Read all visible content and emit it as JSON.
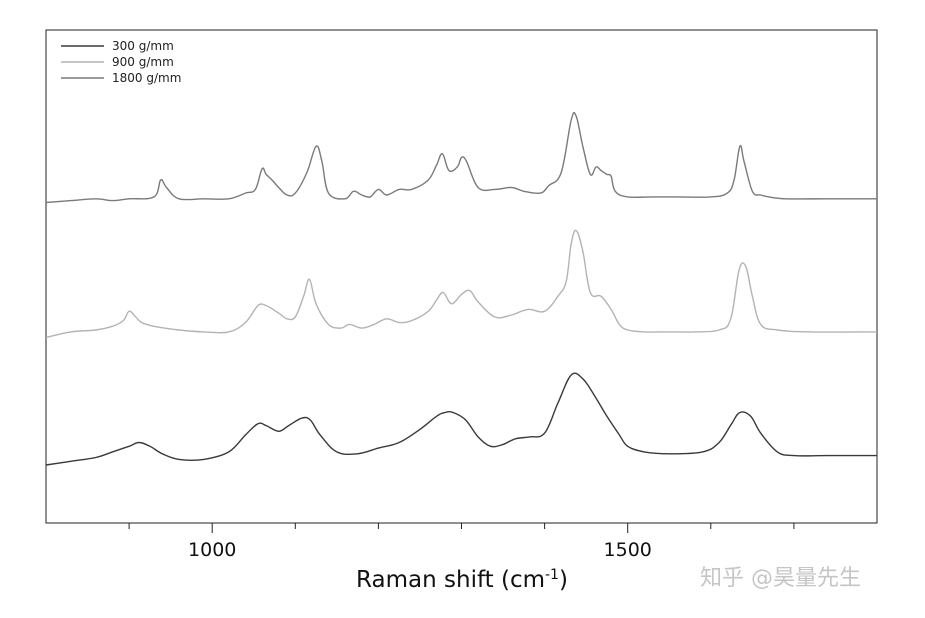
{
  "chart_data": {
    "type": "line",
    "xlabel_base": "Raman shift (cm",
    "xlabel_exp": "-1",
    "xlabel_close": ")",
    "ylabel": "",
    "xlim": [
      800,
      1800
    ],
    "x_major_ticks": [
      1000,
      1500
    ],
    "x_minor_ticks": [
      900,
      1100,
      1200,
      1300,
      1400,
      1600,
      1700
    ],
    "legend_position": "top-left",
    "y_axis": "no ticks or labels; spectra offset vertically",
    "series": [
      {
        "name": "300 g/mm",
        "color": "#3a3a3a",
        "offset": 0.0,
        "x": [
          800,
          830,
          860,
          880,
          900,
          912,
          925,
          940,
          960,
          990,
          1020,
          1040,
          1055,
          1065,
          1080,
          1092,
          1108,
          1118,
          1130,
          1150,
          1175,
          1200,
          1225,
          1250,
          1270,
          1280,
          1290,
          1305,
          1320,
          1335,
          1350,
          1365,
          1382,
          1400,
          1416,
          1432,
          1446,
          1460,
          1475,
          1490,
          1500,
          1520,
          1550,
          1590,
          1610,
          1625,
          1635,
          1648,
          1660,
          1680,
          1700,
          1740,
          1800
        ],
        "y": [
          0.0,
          0.02,
          0.04,
          0.07,
          0.1,
          0.12,
          0.1,
          0.06,
          0.03,
          0.03,
          0.07,
          0.16,
          0.22,
          0.21,
          0.18,
          0.21,
          0.25,
          0.24,
          0.16,
          0.07,
          0.06,
          0.09,
          0.12,
          0.19,
          0.26,
          0.28,
          0.28,
          0.24,
          0.15,
          0.1,
          0.11,
          0.14,
          0.15,
          0.17,
          0.33,
          0.48,
          0.46,
          0.37,
          0.26,
          0.16,
          0.1,
          0.07,
          0.06,
          0.07,
          0.12,
          0.22,
          0.28,
          0.26,
          0.17,
          0.07,
          0.05,
          0.05,
          0.05
        ]
      },
      {
        "name": "900 g/mm",
        "color": "#b3b3b3",
        "offset": 0.68,
        "x": [
          800,
          830,
          860,
          880,
          893,
          900,
          908,
          915,
          930,
          960,
          990,
          1020,
          1040,
          1055,
          1065,
          1080,
          1090,
          1100,
          1110,
          1117,
          1125,
          1140,
          1155,
          1165,
          1180,
          1195,
          1210,
          1225,
          1240,
          1260,
          1270,
          1278,
          1288,
          1300,
          1310,
          1320,
          1340,
          1360,
          1380,
          1400,
          1416,
          1426,
          1432,
          1438,
          1446,
          1455,
          1468,
          1480,
          1490,
          1500,
          1520,
          1550,
          1580,
          1610,
          1624,
          1634,
          1642,
          1650,
          1660,
          1680,
          1720,
          1800
        ],
        "y": [
          0.0,
          0.03,
          0.04,
          0.06,
          0.09,
          0.14,
          0.11,
          0.08,
          0.06,
          0.04,
          0.03,
          0.03,
          0.08,
          0.17,
          0.17,
          0.13,
          0.1,
          0.11,
          0.22,
          0.31,
          0.18,
          0.07,
          0.05,
          0.07,
          0.05,
          0.07,
          0.1,
          0.08,
          0.09,
          0.14,
          0.2,
          0.24,
          0.18,
          0.23,
          0.25,
          0.19,
          0.11,
          0.12,
          0.15,
          0.14,
          0.22,
          0.3,
          0.5,
          0.57,
          0.46,
          0.24,
          0.22,
          0.15,
          0.07,
          0.04,
          0.03,
          0.03,
          0.03,
          0.04,
          0.1,
          0.36,
          0.38,
          0.22,
          0.07,
          0.04,
          0.03,
          0.03
        ]
      },
      {
        "name": "1800 g/mm",
        "color": "#7a7a7a",
        "offset": 1.4,
        "x": [
          800,
          830,
          860,
          880,
          900,
          930,
          938,
          945,
          960,
          990,
          1020,
          1040,
          1052,
          1060,
          1065,
          1072,
          1080,
          1090,
          1100,
          1114,
          1125,
          1132,
          1140,
          1160,
          1170,
          1180,
          1190,
          1200,
          1210,
          1225,
          1240,
          1260,
          1270,
          1277,
          1285,
          1295,
          1300,
          1306,
          1320,
          1340,
          1360,
          1375,
          1395,
          1405,
          1420,
          1432,
          1438,
          1446,
          1455,
          1462,
          1468,
          1475,
          1480,
          1485,
          1500,
          1530,
          1560,
          1600,
          1620,
          1628,
          1635,
          1640,
          1650,
          1660,
          1670,
          1690,
          1740,
          1800
        ],
        "y": [
          0.0,
          0.01,
          0.02,
          0.01,
          0.02,
          0.03,
          0.12,
          0.08,
          0.02,
          0.02,
          0.02,
          0.05,
          0.07,
          0.18,
          0.15,
          0.12,
          0.08,
          0.04,
          0.05,
          0.16,
          0.3,
          0.22,
          0.05,
          0.02,
          0.06,
          0.04,
          0.03,
          0.07,
          0.04,
          0.07,
          0.07,
          0.12,
          0.2,
          0.26,
          0.17,
          0.19,
          0.24,
          0.22,
          0.08,
          0.07,
          0.08,
          0.06,
          0.05,
          0.09,
          0.16,
          0.44,
          0.46,
          0.3,
          0.15,
          0.19,
          0.17,
          0.15,
          0.14,
          0.06,
          0.03,
          0.03,
          0.03,
          0.03,
          0.05,
          0.12,
          0.3,
          0.22,
          0.06,
          0.04,
          0.03,
          0.02,
          0.02,
          0.02
        ]
      }
    ]
  },
  "watermark": "知乎 @昊量先生"
}
